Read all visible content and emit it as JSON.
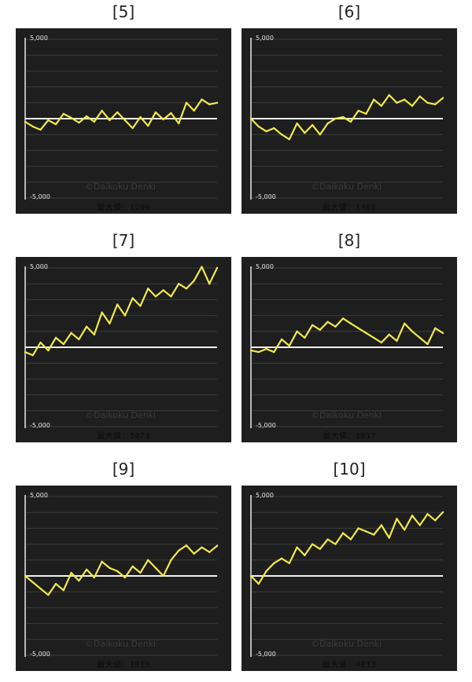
{
  "watermark": "©Daikoku Denki",
  "chart_data": [
    {
      "type": "line",
      "label": "[5]",
      "max_label": "最大値：1206",
      "ylim": [
        -5000,
        5000
      ],
      "yticks": [
        "5,000",
        "-5,000"
      ],
      "x": [
        0,
        4,
        8,
        12,
        16,
        20,
        24,
        28,
        32,
        36,
        40,
        44,
        48,
        52,
        56,
        60,
        64,
        68,
        72,
        76,
        80,
        84,
        88,
        92,
        96,
        100
      ],
      "values": [
        -200,
        -500,
        -700,
        -100,
        -350,
        300,
        50,
        -250,
        150,
        -200,
        500,
        -100,
        400,
        -100,
        -600,
        100,
        -450,
        400,
        -50,
        350,
        -300,
        1000,
        500,
        1206,
        900,
        1000
      ]
    },
    {
      "type": "line",
      "label": "[6]",
      "max_label": "最大値：1486",
      "ylim": [
        -5000,
        5000
      ],
      "yticks": [
        "5,000",
        "-5,000"
      ],
      "x": [
        0,
        4,
        8,
        12,
        16,
        20,
        24,
        28,
        32,
        36,
        40,
        44,
        48,
        52,
        56,
        60,
        64,
        68,
        72,
        76,
        80,
        84,
        88,
        92,
        96,
        100
      ],
      "values": [
        0,
        -500,
        -800,
        -600,
        -1000,
        -1300,
        -300,
        -900,
        -400,
        -1000,
        -300,
        0,
        100,
        -200,
        500,
        300,
        1200,
        800,
        1486,
        1000,
        1200,
        800,
        1400,
        1000,
        900,
        1300
      ]
    },
    {
      "type": "line",
      "label": "[7]",
      "max_label": "最大値：5073",
      "ylim": [
        -5000,
        5000
      ],
      "yticks": [
        "5,000",
        "-5,000"
      ],
      "x": [
        0,
        4,
        8,
        12,
        16,
        20,
        24,
        28,
        32,
        36,
        40,
        44,
        48,
        52,
        56,
        60,
        64,
        68,
        72,
        76,
        80,
        84,
        88,
        92,
        96,
        100
      ],
      "values": [
        -300,
        -500,
        300,
        -200,
        600,
        200,
        900,
        500,
        1300,
        800,
        2200,
        1500,
        2700,
        2000,
        3100,
        2600,
        3700,
        3200,
        3600,
        3200,
        4000,
        3700,
        4200,
        5073,
        4000,
        5000
      ]
    },
    {
      "type": "line",
      "label": "[8]",
      "max_label": "最大値：1817",
      "ylim": [
        -5000,
        5000
      ],
      "yticks": [
        "5,000",
        "-5,000"
      ],
      "x": [
        0,
        4,
        8,
        12,
        16,
        20,
        24,
        28,
        32,
        36,
        40,
        44,
        48,
        52,
        56,
        60,
        64,
        68,
        72,
        76,
        80,
        84,
        88,
        92,
        96,
        100
      ],
      "values": [
        -200,
        -300,
        -100,
        -300,
        500,
        100,
        1000,
        600,
        1400,
        1100,
        1600,
        1300,
        1817,
        1500,
        1200,
        900,
        600,
        300,
        800,
        400,
        1500,
        1000,
        600,
        200,
        1200,
        900
      ]
    },
    {
      "type": "line",
      "label": "[9]",
      "max_label": "最大値：1919",
      "ylim": [
        -5000,
        5000
      ],
      "yticks": [
        "5,000",
        "-5,000"
      ],
      "x": [
        0,
        4,
        8,
        12,
        16,
        20,
        24,
        28,
        32,
        36,
        40,
        44,
        48,
        52,
        56,
        60,
        64,
        68,
        72,
        76,
        80,
        84,
        88,
        92,
        96,
        100
      ],
      "values": [
        0,
        -400,
        -800,
        -1200,
        -500,
        -900,
        200,
        -300,
        400,
        -100,
        900,
        500,
        300,
        -100,
        600,
        200,
        1000,
        500,
        0,
        1000,
        1600,
        1919,
        1400,
        1800,
        1500,
        1900
      ]
    },
    {
      "type": "line",
      "label": "[10]",
      "max_label": "最大値：4013",
      "ylim": [
        -5000,
        5000
      ],
      "yticks": [
        "5,000",
        "-5,000"
      ],
      "x": [
        0,
        4,
        8,
        12,
        16,
        20,
        24,
        28,
        32,
        36,
        40,
        44,
        48,
        52,
        56,
        60,
        64,
        68,
        72,
        76,
        80,
        84,
        88,
        92,
        96,
        100
      ],
      "values": [
        0,
        -500,
        300,
        800,
        1100,
        800,
        1800,
        1300,
        2000,
        1700,
        2300,
        2000,
        2700,
        2300,
        3000,
        2800,
        2600,
        3200,
        2400,
        3600,
        2900,
        3800,
        3200,
        3900,
        3500,
        4013
      ]
    }
  ]
}
